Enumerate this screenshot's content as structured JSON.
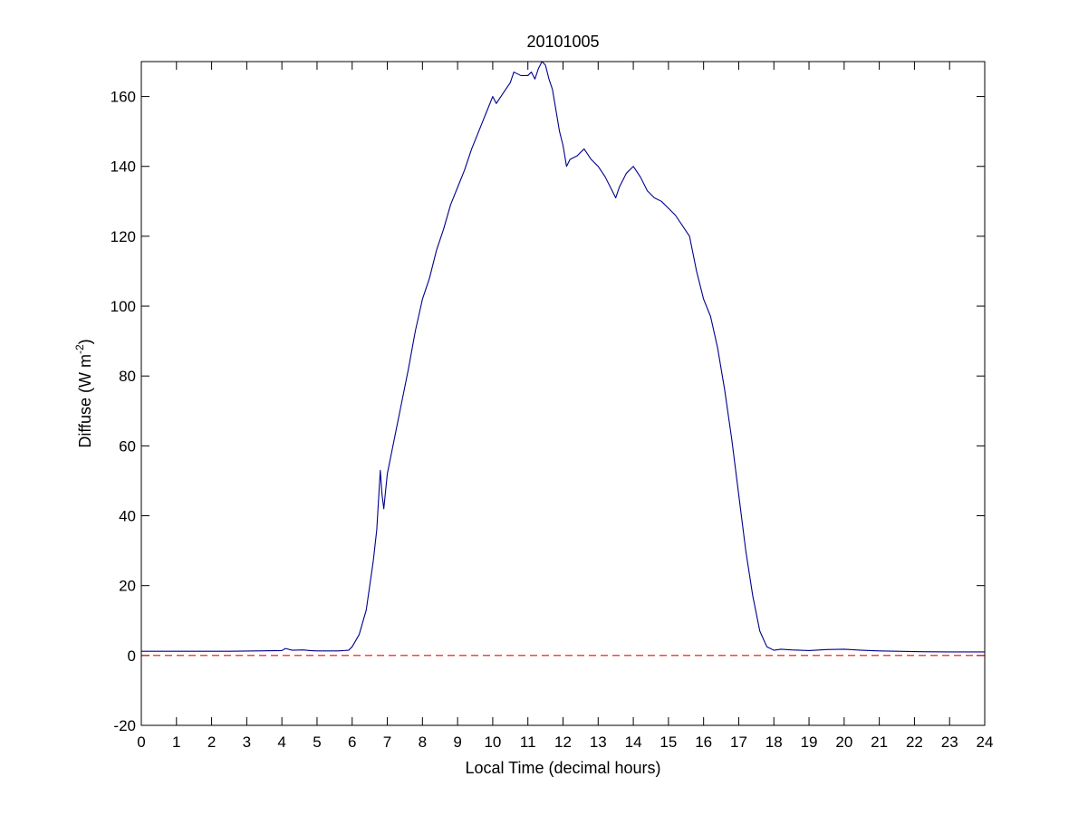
{
  "chart_data": {
    "type": "line",
    "title": "20101005",
    "xlabel": "Local Time (decimal hours)",
    "ylabel": {
      "text": "Diffuse (W m",
      "superscript": "-2",
      "suffix": ")"
    },
    "xlim": [
      0,
      24
    ],
    "ylim": [
      -20,
      170
    ],
    "xticks": [
      "0",
      "1",
      "2",
      "3",
      "4",
      "5",
      "6",
      "7",
      "8",
      "9",
      "10",
      "11",
      "12",
      "13",
      "14",
      "15",
      "16",
      "17",
      "18",
      "19",
      "20",
      "21",
      "22",
      "23",
      "24"
    ],
    "yticks": [
      "-20",
      "0",
      "20",
      "40",
      "60",
      "80",
      "100",
      "120",
      "140",
      "160"
    ],
    "grid": false,
    "colors": {
      "series": "#00008b",
      "reference": "#ff0000"
    },
    "series": [
      {
        "style": "solid",
        "x": [
          0,
          2.5,
          4.0,
          4.1,
          4.3,
          4.6,
          4.8,
          5.0,
          5.6,
          5.9,
          6.0,
          6.2,
          6.4,
          6.6,
          6.7,
          6.8,
          6.85,
          6.9,
          7.0,
          7.2,
          7.4,
          7.6,
          7.8,
          8.0,
          8.2,
          8.4,
          8.6,
          8.8,
          9.0,
          9.2,
          9.4,
          9.6,
          9.8,
          10.0,
          10.1,
          10.3,
          10.5,
          10.6,
          10.8,
          11.0,
          11.1,
          11.2,
          11.3,
          11.4,
          11.5,
          11.6,
          11.7,
          11.8,
          11.9,
          12.0,
          12.1,
          12.2,
          12.4,
          12.6,
          12.8,
          13.0,
          13.2,
          13.4,
          13.5,
          13.6,
          13.8,
          14.0,
          14.2,
          14.4,
          14.6,
          14.8,
          15.0,
          15.2,
          15.4,
          15.6,
          15.8,
          16.0,
          16.2,
          16.4,
          16.6,
          16.8,
          17.0,
          17.2,
          17.4,
          17.6,
          17.8,
          18.0,
          18.2,
          18.5,
          19.0,
          19.5,
          20.0,
          20.5,
          21.0,
          22.0,
          23.0,
          24.0
        ],
        "values": [
          1.2,
          1.2,
          1.4,
          2,
          1.5,
          1.6,
          1.4,
          1.3,
          1.3,
          1.5,
          2.5,
          6,
          13,
          27,
          36,
          53,
          46,
          42,
          52,
          62,
          72,
          82,
          93,
          102,
          108,
          116,
          122,
          129,
          134,
          139,
          145,
          150,
          155,
          160,
          158,
          161,
          164,
          167,
          166,
          166,
          167,
          165,
          168,
          170,
          169,
          165,
          162,
          156,
          150,
          146,
          140,
          142,
          143,
          145,
          142,
          140,
          137,
          133,
          131,
          134,
          138,
          140,
          137,
          133,
          131,
          130,
          128,
          126,
          123,
          120,
          110,
          102,
          97,
          88,
          76,
          62,
          46,
          30,
          17,
          7,
          2.5,
          1.5,
          1.8,
          1.6,
          1.4,
          1.7,
          1.8,
          1.5,
          1.3,
          1.1,
          1.0,
          1.0
        ]
      },
      {
        "style": "dashed",
        "x": [
          0,
          24
        ],
        "values": [
          0,
          0
        ]
      }
    ]
  }
}
